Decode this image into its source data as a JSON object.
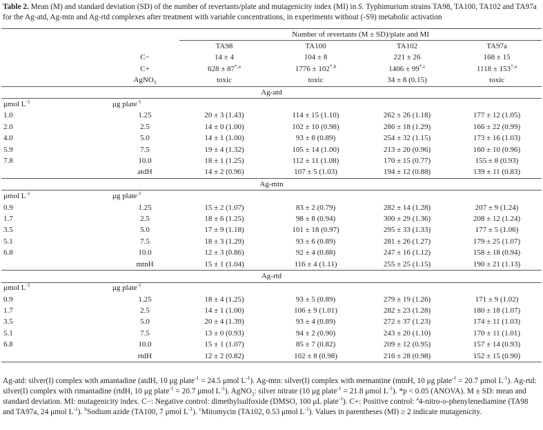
{
  "caption": {
    "label": "Table 2.",
    "segments": [
      {
        "t": " Mean (M) and standard deviation (SD) of the number of revertants/plate and mutagenicity index (MI) in "
      },
      {
        "t": "S.",
        "f": "i"
      },
      {
        "t": " Typhimurium strains TA98, TA100, TA102 and TA97a for the Ag-atd, Ag-mtn and Ag-rtd complexes after treatment with variable concentrations, in experiments without (-S9) metabolic activation"
      }
    ]
  },
  "table": {
    "header": "Number of revertants (M ± SD)/plate and MI",
    "columns": [
      "TA98",
      "TA100",
      "TA102",
      "TA97a"
    ],
    "controls": [
      {
        "label": "C−",
        "cells": [
          "14 ± 4",
          "104 ± 8",
          "221 ± 26",
          "168 ± 15"
        ]
      },
      {
        "label": "C+",
        "cells": [
          {
            "t": "628 ± 87",
            "sup": "*,a"
          },
          {
            "t": "1776 ± 102",
            "sup": "*,b"
          },
          {
            "t": "1406 ± 99",
            "sup": "*,c"
          },
          {
            "t": "1118 ± 153",
            "sup": "*,a"
          }
        ]
      },
      {
        "label": {
          "t": "AgNO",
          "sub": "3"
        },
        "cells": [
          "toxic",
          "toxic",
          "34 ± 8 (0.15)",
          "toxic"
        ]
      }
    ],
    "sections": [
      {
        "title": "Ag-atd",
        "unit1": {
          "t": "μmol L",
          "sup": "-1"
        },
        "unit2": {
          "t": "μg plate",
          "sup": "-1"
        },
        "rows": [
          [
            "1.0",
            "1.25",
            "20 ± 3 (1.43)",
            "114 ± 15 (1.10)",
            "262 ± 26 (1.18)",
            "177 ± 12 (1.05)"
          ],
          [
            "2.0",
            "2.5",
            "14 ± 0 (1.00)",
            "102 ± 10 (0.98)",
            "286 ± 18 (1.29)",
            "166 ± 22 (0.99)"
          ],
          [
            "4.0",
            "5.0",
            "14 ± 1 (1.00)",
            "93 ± 8 (0.89)",
            "254 ± 32 (1.15)",
            "173 ± 16 (1.03)"
          ],
          [
            "5.9",
            "7.5",
            "19 ± 4 (1.32)",
            "105 ± 14 (1.00)",
            "213 ± 20 (0.96)",
            "160 ± 10 (0.96)"
          ],
          [
            "7.8",
            "10.0",
            "18 ± 1 (1.25)",
            "112 ± 11 (1.08)",
            "170 ± 15 (0.77)",
            "155 ± 8 (0.93)"
          ],
          [
            null,
            "atdH",
            "14 ± 2 (0.96)",
            "107 ± 5 (1.03)",
            "194 ± 12 (0.88)",
            "139 ± 11 (0.83)"
          ]
        ]
      },
      {
        "title": "Ag-mtn",
        "unit1": {
          "t": "μmol L",
          "sup": "-1"
        },
        "unit2": {
          "t": "μg plate",
          "sup": "-1"
        },
        "rows": [
          [
            "0.9",
            "1.25",
            "15 ± 2 (1.07)",
            "83 ± 2 (0.79)",
            "282 ± 14 (1.28)",
            "207 ± 9 (1.24)"
          ],
          [
            "1.7",
            "2.5",
            "18 ± 6 (1.25)",
            "98 ± 8 (0.94)",
            "300 ± 29 (1.36)",
            "208 ± 12 (1.24)"
          ],
          [
            "3.5",
            "5.0",
            "17 ± 9 (1.18)",
            "101 ± 18 (0.97)",
            "295 ± 33 (1.33)",
            "177 ± 5 (1.06)"
          ],
          [
            "5.1",
            "7.5",
            "18 ± 3 (1.29)",
            "93 ± 6 (0.89)",
            "281 ± 26 (1.27)",
            "179 ± 25 (1.07)"
          ],
          [
            "6.8",
            "10.0",
            "12 ± 3 (0.86)",
            "92 ± 4 (0.88)",
            "247 ± 16 (1.12)",
            "158 ± 18 (0.94)"
          ],
          [
            null,
            "mtnH",
            "15 ± 1 (1.04)",
            "116 ± 4 (1.11)",
            "255 ± 25 (1.15)",
            "190 ± 21 (1.13)"
          ]
        ]
      },
      {
        "title": "Ag-rtd",
        "unit1": {
          "t": "μmol L",
          "sup": "-1"
        },
        "unit2": {
          "t": "μg plate",
          "sup": "-1"
        },
        "rows": [
          [
            "0.9",
            "1.25",
            "18 ± 4 (1.25)",
            "93 ± 5 (0.89)",
            "279 ± 19 (1.26)",
            "171 ± 9 (1.02)"
          ],
          [
            "1.7",
            "2.5",
            "14 ± 1 (1.00)",
            "106 ± 9 (1.01)",
            "282 ± 23 (1.28)",
            "180 ± 18 (1.07)"
          ],
          [
            "3.5",
            "5.0",
            "20 ± 4 (1.39)",
            "93 ± 4 (0.89)",
            "272 ± 37 (1.23)",
            "174 ± 11 (1.03)"
          ],
          [
            "5.1",
            "7.5",
            "13 ± 0 (0.93)",
            "94 ± 2 (0.90)",
            "243 ± 20 (1.10)",
            "170 ± 11 (1.01)"
          ],
          [
            "6.8",
            "10.0",
            "15 ± 1 (1.07)",
            "85 ± 7 (0.82)",
            "209 ± 12 (0.95)",
            "157 ± 14 (0.93)"
          ],
          [
            null,
            "rtdH",
            "12 ± 2 (0.82)",
            "102 ± 8 (0.98)",
            "216 ± 28 (0.98)",
            "152 ± 15 (0.90)"
          ]
        ]
      }
    ]
  },
  "footnote": {
    "segments": [
      {
        "t": "Ag-atd: silver(I) complex with amantadine (atdH, 10 μg plate"
      },
      {
        "t": "-1",
        "f": "sup"
      },
      {
        "t": " = 24.5 μmol L"
      },
      {
        "t": "-1",
        "f": "sup"
      },
      {
        "t": "). Ag-mtn: silver(I) complex with memantine (mtnH, 10 μg plate"
      },
      {
        "t": "-1",
        "f": "sup"
      },
      {
        "t": " = 20.7 μmol L"
      },
      {
        "t": "-1",
        "f": "sup"
      },
      {
        "t": "). Ag-rtd: silver(I) complex with rimantadine (rtdH, 10 μg plate"
      },
      {
        "t": "-1",
        "f": "sup"
      },
      {
        "t": " = 20.7 μmol L"
      },
      {
        "t": "-1",
        "f": "sup"
      },
      {
        "t": "). AgNO"
      },
      {
        "t": "3",
        "f": "sub"
      },
      {
        "t": ": silver nitrate (10 μg plate"
      },
      {
        "t": "-1",
        "f": "sup"
      },
      {
        "t": " = 21.8 μmol L"
      },
      {
        "t": "-1",
        "f": "sup"
      },
      {
        "t": "). *p < 0.05 (ANOVA). M ± SD: mean and standard deviation. MI: mutagenicity index. C−: Negative control: dimethylsulfoxide (DMSO, 100 μL plate"
      },
      {
        "t": "-1",
        "f": "sup"
      },
      {
        "t": "). C+: Positive control: "
      },
      {
        "t": "a",
        "f": "sup"
      },
      {
        "t": "4-nitro-"
      },
      {
        "t": "o",
        "f": "i"
      },
      {
        "t": "-phenylenediamine (TA98 and TA97a, 24 μmol L"
      },
      {
        "t": "-1",
        "f": "sup"
      },
      {
        "t": "). "
      },
      {
        "t": "b",
        "f": "sup"
      },
      {
        "t": "Sodium azide (TA100, 7 μmol L"
      },
      {
        "t": "-1",
        "f": "sup"
      },
      {
        "t": "). "
      },
      {
        "t": "c",
        "f": "sup"
      },
      {
        "t": "Mitomycin (TA102, 0.53 μmol L"
      },
      {
        "t": "-1",
        "f": "sup"
      },
      {
        "t": "). Values in parentheses (MI) ≥ 2 indicate mutagenicity."
      }
    ]
  }
}
